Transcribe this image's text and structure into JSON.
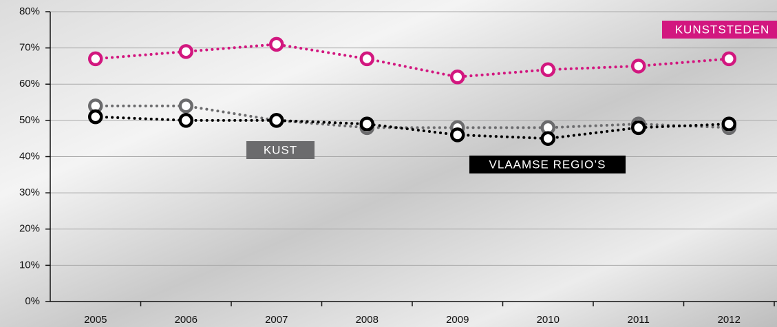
{
  "chart_data": {
    "type": "line",
    "categories": [
      "2005",
      "2006",
      "2007",
      "2008",
      "2009",
      "2010",
      "2011",
      "2012"
    ],
    "series": [
      {
        "name": "KUNSTSTEDEN",
        "color": "#d2177f",
        "values": [
          67,
          69,
          71,
          67,
          62,
          64,
          65,
          67
        ]
      },
      {
        "name": "KUST",
        "color": "#6b6b6d",
        "values": [
          54,
          54,
          50,
          48,
          48,
          48,
          49,
          48
        ]
      },
      {
        "name": "VLAAMSE REGIO’S",
        "color": "#000000",
        "values": [
          51,
          50,
          50,
          49,
          46,
          45,
          48,
          49
        ]
      }
    ],
    "ylim": [
      0,
      80
    ],
    "yticks": [
      {
        "value": 0,
        "label": "0%"
      },
      {
        "value": 10,
        "label": "10%"
      },
      {
        "value": 20,
        "label": "20%"
      },
      {
        "value": 30,
        "label": "30%"
      },
      {
        "value": 40,
        "label": "40%"
      },
      {
        "value": 50,
        "label": "50%"
      },
      {
        "value": 60,
        "label": "60%"
      },
      {
        "value": 70,
        "label": "70%"
      },
      {
        "value": 80,
        "label": "80%"
      }
    ],
    "grid": true
  }
}
